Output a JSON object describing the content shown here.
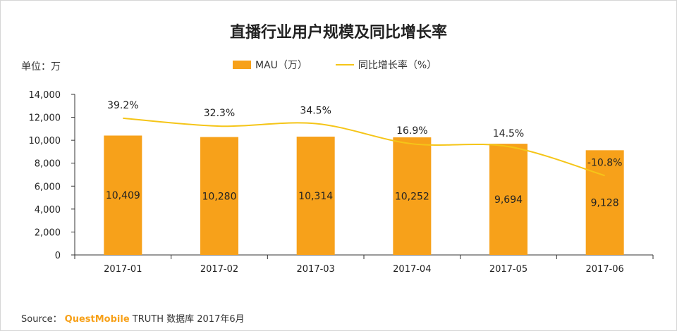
{
  "title": "直播行业用户规模及同比增长率",
  "unit_label": "单位：万",
  "legend": {
    "bar_label": "MAU（万）",
    "line_label": "同比增长率（%）"
  },
  "source": {
    "prefix": "Source：",
    "brand": "QuestMobile",
    "suffix": "TRUTH 数据库 2017年6月"
  },
  "colors": {
    "bar": "#F7A11A",
    "line": "#F5C518"
  },
  "chart_data": {
    "type": "bar",
    "title": "直播行业用户规模及同比增长率",
    "categories": [
      "2017-01",
      "2017-02",
      "2017-03",
      "2017-04",
      "2017-05",
      "2017-06"
    ],
    "series": [
      {
        "name": "MAU（万）",
        "type": "bar",
        "values": [
          10409,
          10280,
          10314,
          10252,
          9694,
          9128
        ],
        "labels": [
          "10,409",
          "10,280",
          "10,314",
          "10,252",
          "9,694",
          "9,128"
        ]
      },
      {
        "name": "同比增长率（%）",
        "type": "line",
        "values": [
          39.2,
          32.3,
          34.5,
          16.9,
          14.5,
          -10.8
        ],
        "labels": [
          "39.2%",
          "32.3%",
          "34.5%",
          "16.9%",
          "14.5%",
          "-10.8%"
        ]
      }
    ],
    "ylim": [
      0,
      14000
    ],
    "yticks": [
      0,
      2000,
      4000,
      6000,
      8000,
      10000,
      12000,
      14000
    ],
    "ytick_labels": [
      "0",
      "2,000",
      "4,000",
      "6,000",
      "8,000",
      "10,000",
      "12,000",
      "14,000"
    ],
    "y2lim": [
      -80,
      60
    ],
    "grid": false,
    "legend_position": "top"
  }
}
